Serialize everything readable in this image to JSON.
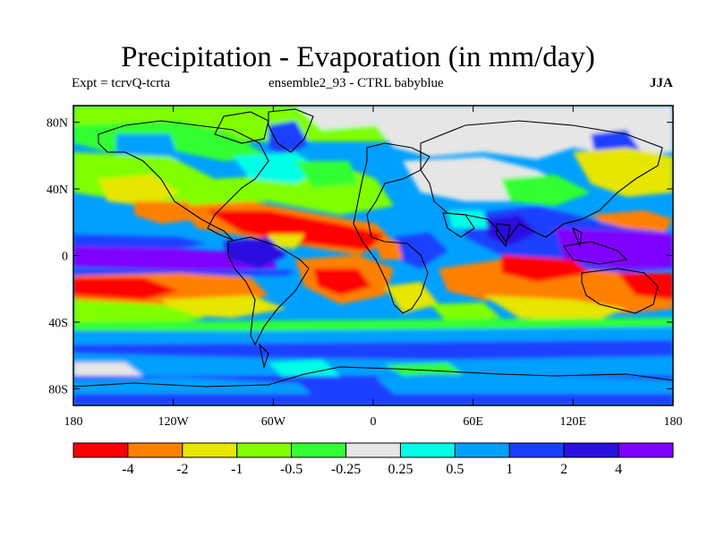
{
  "title": "Precipitation - Evaporation (in mm/day)",
  "subtitle_left": "Expt = tcrvQ-tcrta",
  "subtitle_center": "ensemble2_93 - CTRL babyblue",
  "season": "JJA",
  "map": {
    "lon_range": [
      -180,
      180
    ],
    "lat_range": [
      -90,
      90
    ],
    "y_ticks": [
      {
        "lat": 80,
        "label": "80N"
      },
      {
        "lat": 40,
        "label": "40N"
      },
      {
        "lat": 0,
        "label": "0"
      },
      {
        "lat": -40,
        "label": "40S"
      },
      {
        "lat": -80,
        "label": "80S"
      }
    ],
    "x_ticks": [
      {
        "lon": -180,
        "label": "180"
      },
      {
        "lon": -120,
        "label": "120W"
      },
      {
        "lon": -60,
        "label": "60W"
      },
      {
        "lon": 0,
        "label": "0"
      },
      {
        "lon": 60,
        "label": "60E"
      },
      {
        "lon": 120,
        "label": "120E"
      },
      {
        "lon": 180,
        "label": "180"
      }
    ]
  },
  "colorbar": {
    "colors": [
      "#ff0000",
      "#ff8000",
      "#e6e600",
      "#80ff00",
      "#33ff33",
      "#e6e6e6",
      "#00ffe6",
      "#00a0ff",
      "#1a40ff",
      "#2a10e0",
      "#8000ff"
    ],
    "labels": [
      "-4",
      "-2",
      "-1",
      "-0.5",
      "-0.25",
      "0.25",
      "0.5",
      "1",
      "2",
      "4"
    ]
  }
}
